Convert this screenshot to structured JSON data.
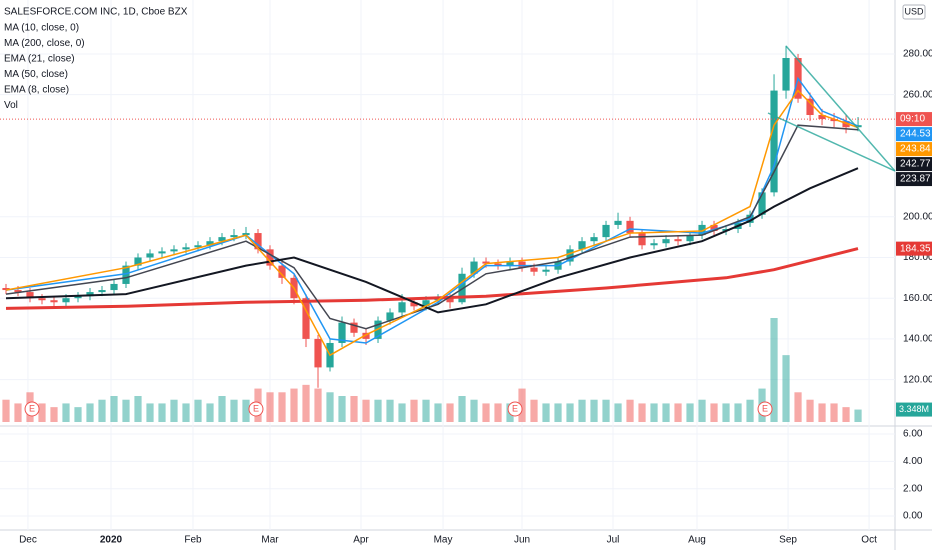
{
  "chart_data": {
    "type": "candlestick",
    "title": "SALESFORCE.COM INC, 1D, Cboe BZX",
    "currency": "USD",
    "open": [
      165,
      164,
      163,
      160,
      159,
      158,
      160,
      161,
      163,
      164,
      167,
      176,
      180,
      182,
      183,
      184,
      185,
      186,
      188,
      190,
      191,
      192,
      184,
      176,
      170,
      160,
      140,
      126,
      138,
      148,
      143,
      140,
      149,
      153,
      158,
      156,
      159,
      160,
      158,
      172,
      178,
      177,
      176,
      178,
      175,
      173,
      174,
      178,
      184,
      188,
      190,
      196,
      198,
      192,
      186,
      187,
      189,
      188,
      191,
      196,
      193,
      194,
      197,
      201,
      212,
      262,
      278,
      258,
      250,
      248,
      247,
      244
    ],
    "high": [
      167,
      166,
      165,
      162,
      161,
      162,
      163,
      165,
      166,
      169,
      178,
      182,
      184,
      185,
      186,
      187,
      188,
      190,
      192,
      194,
      195,
      194,
      186,
      178,
      172,
      162,
      142,
      140,
      151,
      150,
      145,
      151,
      155,
      162,
      160,
      161,
      162,
      162,
      175,
      180,
      180,
      179,
      180,
      180,
      177,
      176,
      180,
      186,
      190,
      192,
      198,
      202,
      200,
      194,
      189,
      191,
      191,
      193,
      198,
      198,
      196,
      199,
      203,
      214,
      270,
      284,
      280,
      261,
      253,
      251,
      250,
      249
    ],
    "low": [
      162,
      161,
      158,
      157,
      156,
      156,
      158,
      159,
      161,
      162,
      165,
      174,
      178,
      180,
      181,
      182,
      183,
      184,
      186,
      188,
      189,
      182,
      174,
      167,
      157,
      136,
      116,
      124,
      136,
      141,
      137,
      138,
      147,
      151,
      154,
      154,
      157,
      155,
      157,
      170,
      175,
      174,
      174,
      173,
      171,
      171,
      172,
      176,
      182,
      186,
      188,
      194,
      190,
      184,
      184,
      185,
      186,
      186,
      189,
      191,
      191,
      192,
      195,
      199,
      210,
      258,
      256,
      247,
      245,
      244,
      241,
      242
    ],
    "close": [
      164,
      163,
      160,
      159,
      158,
      160,
      161,
      163,
      164,
      167,
      176,
      180,
      182,
      183,
      184,
      185,
      186,
      188,
      190,
      191,
      192,
      184,
      176,
      170,
      160,
      140,
      126,
      138,
      148,
      143,
      140,
      149,
      153,
      158,
      156,
      159,
      160,
      158,
      172,
      178,
      177,
      176,
      178,
      175,
      173,
      174,
      178,
      184,
      188,
      190,
      196,
      198,
      192,
      186,
      187,
      189,
      188,
      191,
      196,
      193,
      194,
      197,
      201,
      212,
      262,
      278,
      258,
      250,
      248,
      247,
      244,
      245
    ],
    "volume": [
      6,
      5,
      8,
      5,
      4,
      5,
      4,
      5,
      6,
      7,
      6,
      7,
      5,
      5,
      6,
      5,
      6,
      5,
      7,
      6,
      6,
      9,
      8,
      8,
      9,
      10,
      9,
      8,
      7,
      7,
      6,
      6,
      6,
      5,
      6,
      6,
      5,
      5,
      7,
      6,
      5,
      5,
      5,
      9,
      6,
      5,
      5,
      5,
      6,
      6,
      6,
      5,
      6,
      5,
      5,
      5,
      5,
      5,
      6,
      5,
      5,
      5,
      6,
      9,
      28,
      18,
      8,
      6,
      5,
      5,
      4,
      3.348
    ],
    "volume_last_label": "3.348M",
    "volume_name": "Vol",
    "series": [
      {
        "name": "MA (10, close, 0)",
        "color": "#2196f3",
        "width": 1.5,
        "x": [
          0,
          10,
          20,
          24,
          27,
          30,
          36,
          40,
          46,
          52,
          58,
          62,
          64,
          66,
          68,
          71
        ],
        "values": [
          164,
          172,
          191,
          172,
          140,
          138,
          158,
          176,
          176,
          194,
          192,
          199,
          225,
          268,
          252,
          244.53
        ]
      },
      {
        "name": "MA (200, close, 0)",
        "color": "#e53935",
        "width": 3,
        "x": [
          0,
          10,
          20,
          30,
          40,
          50,
          60,
          64,
          71
        ],
        "values": [
          155,
          156,
          158,
          159,
          161,
          165,
          170,
          174,
          184.35
        ]
      },
      {
        "name": "EMA (21, close)",
        "color": "#434651",
        "width": 1.5,
        "x": [
          0,
          10,
          20,
          24,
          27,
          30,
          36,
          40,
          46,
          52,
          58,
          62,
          64,
          66,
          71
        ],
        "values": [
          162,
          170,
          188,
          175,
          150,
          145,
          157,
          172,
          178,
          190,
          191,
          200,
          222,
          245,
          242.77
        ]
      },
      {
        "name": "MA (50, close)",
        "color": "#131722",
        "width": 2,
        "x": [
          0,
          10,
          20,
          24,
          30,
          36,
          40,
          46,
          52,
          58,
          62,
          64,
          67,
          71
        ],
        "values": [
          160,
          162,
          176,
          180,
          168,
          153,
          157,
          170,
          180,
          188,
          198,
          205,
          214,
          223.87
        ]
      },
      {
        "name": "EMA (8, close)",
        "color": "#ff9800",
        "width": 1.5,
        "x": [
          0,
          10,
          20,
          24,
          27,
          30,
          36,
          40,
          46,
          52,
          58,
          62,
          64,
          66,
          68,
          71
        ],
        "values": [
          164,
          175,
          191,
          165,
          132,
          142,
          159,
          177,
          180,
          192,
          193,
          205,
          245,
          262,
          250,
          243.84
        ]
      }
    ],
    "price_labels": [
      {
        "value": 248,
        "label": "09:10",
        "color": "#ef5350"
      },
      {
        "value": 244.53,
        "label": "244.53",
        "color": "#2196f3"
      },
      {
        "value": 243.84,
        "label": "243.84",
        "color": "#ff9800"
      },
      {
        "value": 242.77,
        "label": "242.77",
        "color": "#131722"
      },
      {
        "value": 223.87,
        "label": "223.87",
        "color": "#131722"
      },
      {
        "value": 184.35,
        "label": "184.35",
        "color": "#e53935"
      }
    ],
    "earnings": [
      {
        "x": 2.17,
        "label": "E"
      },
      {
        "x": 20.83,
        "label": "E"
      },
      {
        "x": 42.42,
        "label": "E"
      },
      {
        "x": 63.25,
        "label": "E"
      }
    ],
    "xlim": [
      -0.5,
      74.08
    ],
    "xticks": [
      {
        "value": 1.83,
        "label": "Dec"
      },
      {
        "value": 8.75,
        "label": "2020"
      },
      {
        "value": 15.58,
        "label": "Feb"
      },
      {
        "value": 22,
        "label": "Mar"
      },
      {
        "value": 29.58,
        "label": "Apr"
      },
      {
        "value": 36.42,
        "label": "May"
      },
      {
        "value": 43,
        "label": "Jun"
      },
      {
        "value": 50.58,
        "label": "Jul"
      },
      {
        "value": 57.58,
        "label": "Aug"
      },
      {
        "value": 65.17,
        "label": "Sep"
      },
      {
        "value": 71.92,
        "label": "Oct"
      }
    ],
    "ylim": [
      97.7,
      306.5
    ],
    "yticks": [
      {
        "value": 120,
        "label": "120.00"
      },
      {
        "value": 140,
        "label": "140.00"
      },
      {
        "value": 160,
        "label": "160.00"
      },
      {
        "value": 180,
        "label": "180.00"
      },
      {
        "value": 200,
        "label": "200.00"
      },
      {
        "value": 260,
        "label": "260.00"
      },
      {
        "value": 280,
        "label": "280.00"
      }
    ],
    "grid": true,
    "up_color": "#26a69a",
    "down_color": "#ef5350",
    "indicator_pane": {
      "ylim": [
        -1.02,
        6.51
      ],
      "yticks": [
        {
          "value": 6,
          "label": "6.00"
        },
        {
          "value": 4,
          "label": "4.00"
        },
        {
          "value": 2,
          "label": "2.00"
        },
        {
          "value": 0,
          "label": "0.00"
        }
      ]
    }
  }
}
